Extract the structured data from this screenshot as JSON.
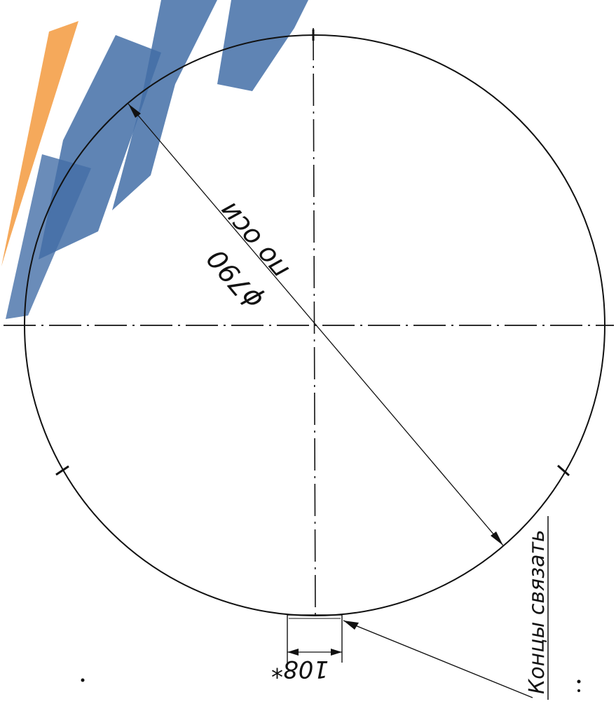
{
  "watermark": {
    "colors": {
      "blue": "#2f5f9e",
      "orange": "#f4a04a"
    }
  },
  "drawing": {
    "diameter_label": "ϕ790",
    "axis_note": "по оси",
    "gap_label": "108*",
    "leader_note": "Концы связать",
    "ink_color": "#111111"
  }
}
